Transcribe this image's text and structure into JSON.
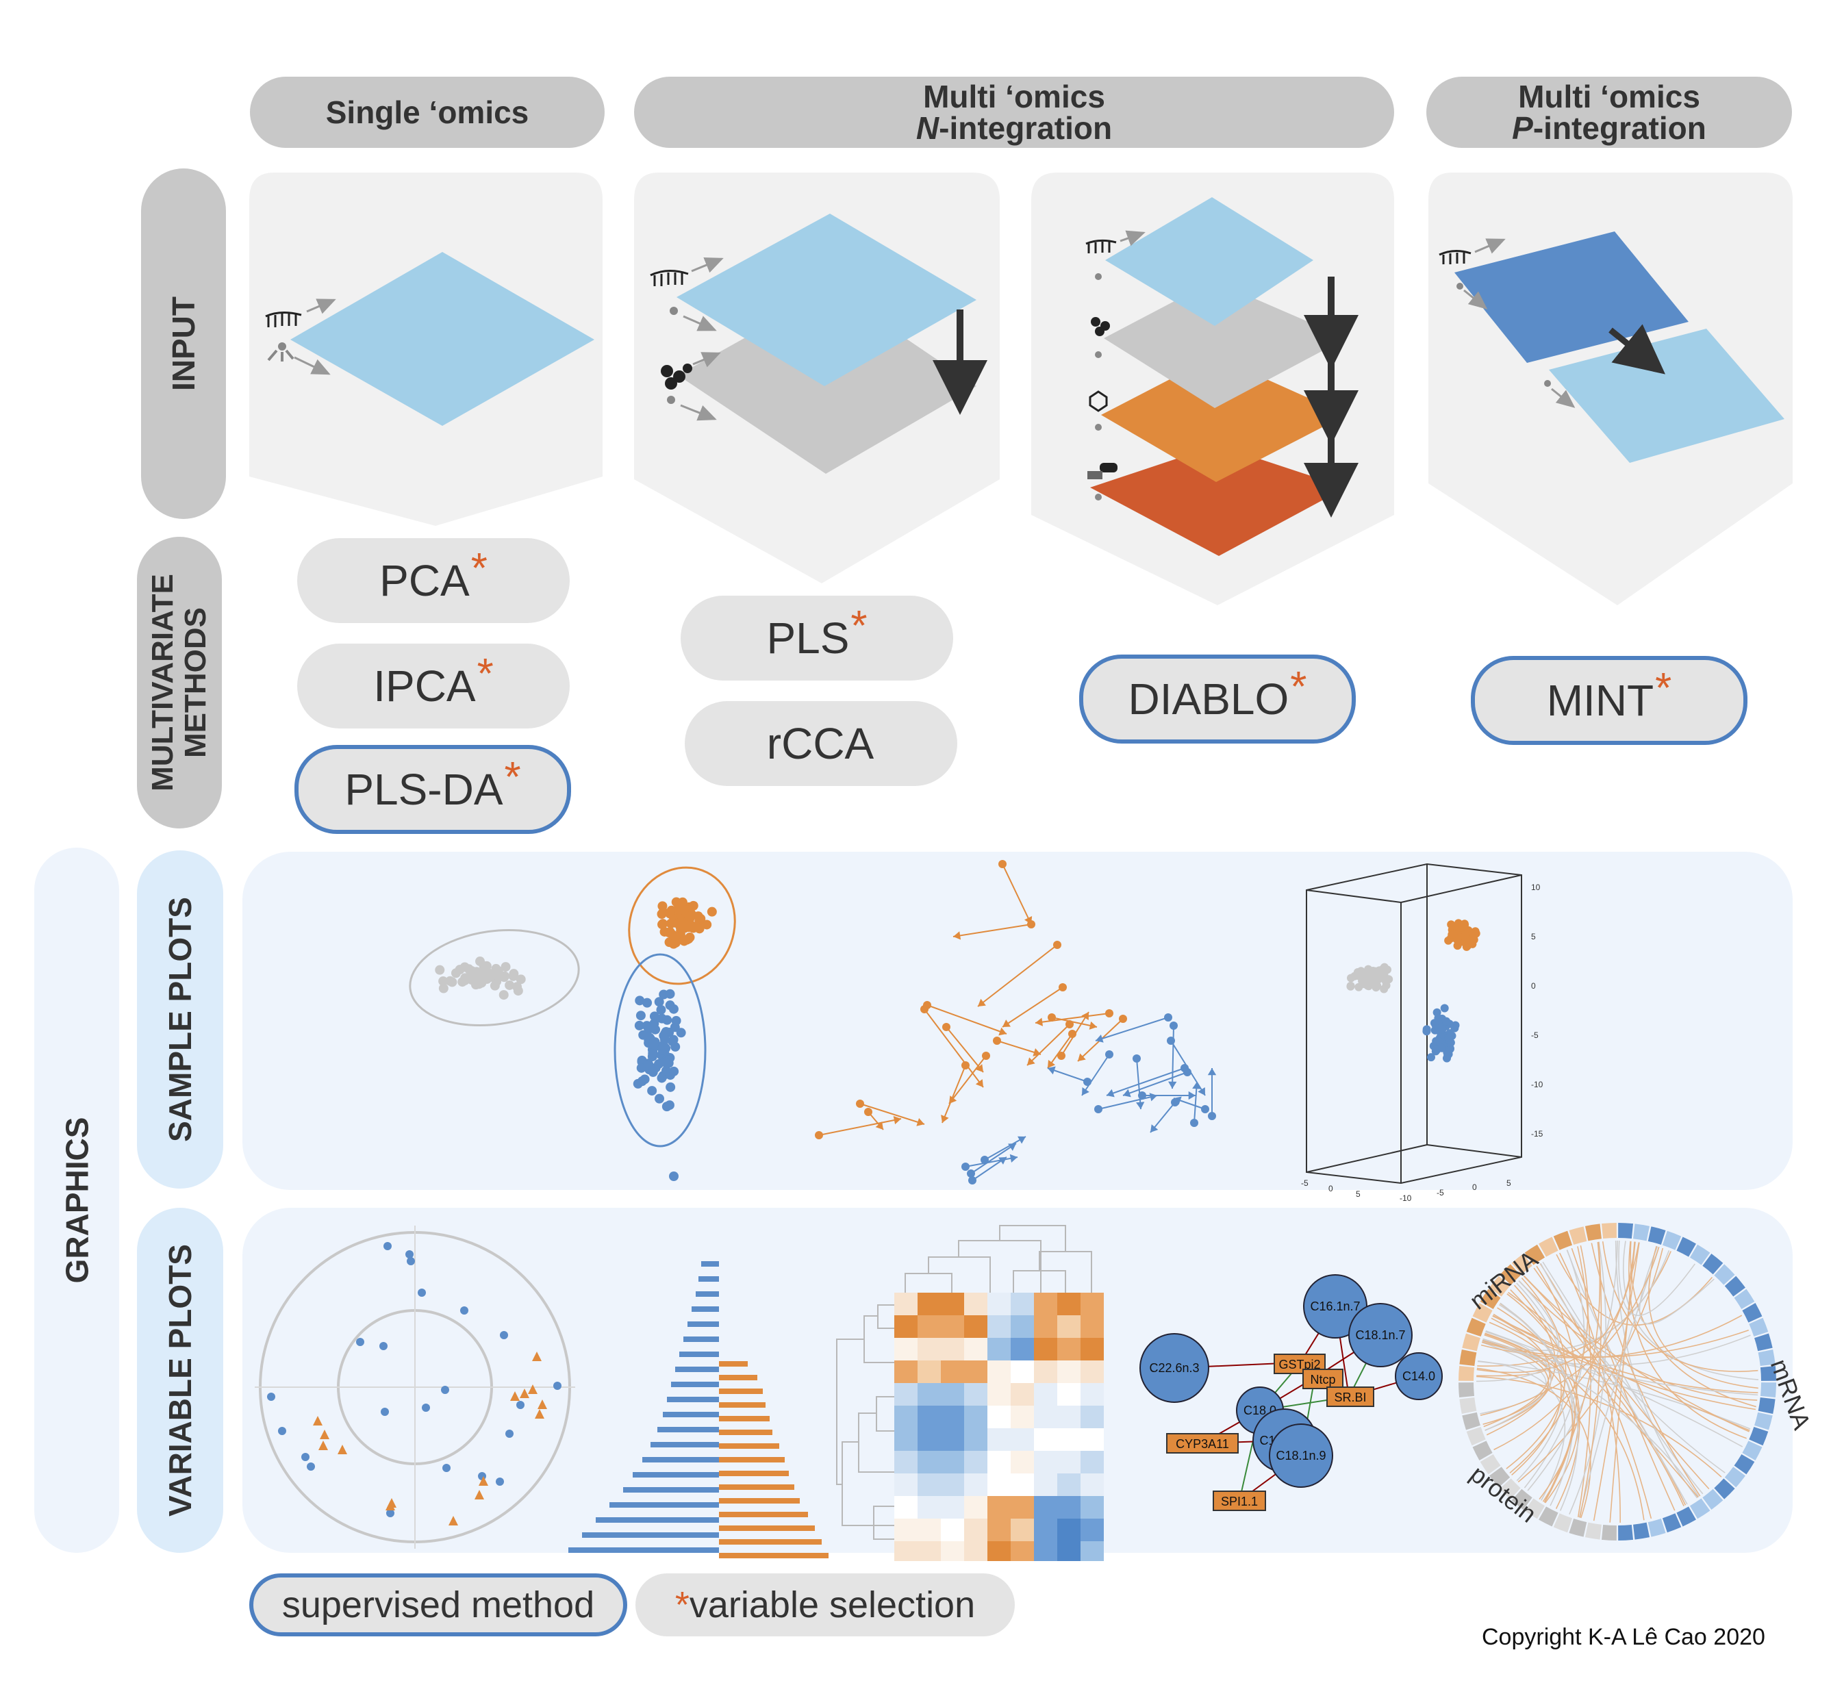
{
  "columns": {
    "single": {
      "line1": "Single ‘omics"
    },
    "multi_n": {
      "line1": "Multi ‘omics",
      "line2_italic": "N",
      "line2_rest": "-integration"
    },
    "multi_p": {
      "line1": "Multi ‘omics",
      "line2_italic": "P",
      "line2_rest": "-integration"
    }
  },
  "rows": {
    "input": "INPUT",
    "methods_line1": "MULTIVARIATE",
    "methods_line2": "METHODS",
    "graphics": "GRAPHICS",
    "sample_plots": "SAMPLE PLOTS",
    "variable_plots": "VARIABLE PLOTS"
  },
  "methods": {
    "pca": {
      "label": "PCA",
      "star": "*",
      "supervised": false
    },
    "ipca": {
      "label": "IPCA",
      "star": "*",
      "supervised": false
    },
    "plsda": {
      "label": "PLS-DA",
      "star": "*",
      "supervised": true
    },
    "pls": {
      "label": "PLS",
      "star": "*",
      "supervised": false
    },
    "rcca": {
      "label": "rCCA",
      "star": "",
      "supervised": false
    },
    "diablo": {
      "label": "DIABLO",
      "star": "*",
      "supervised": true
    },
    "mint": {
      "label": "MINT",
      "star": "*",
      "supervised": true
    }
  },
  "legend": {
    "supervised": "supervised method",
    "star": "*",
    "variable_selection": "variable selection"
  },
  "copyright": "Copyright  K-A Lê Cao 2020",
  "plot3d": {
    "right_ticks": [
      "10",
      "5",
      "0",
      "-5",
      "-10",
      "-15"
    ],
    "bottom_left_ticks": [
      "-5",
      "0",
      "5"
    ],
    "bottom_right_ticks": [
      "-10",
      "-5",
      "0",
      "5"
    ]
  },
  "network": {
    "circles": [
      "C22.6n.3",
      "C16.1n.7",
      "C18.1n.7",
      "C14.0",
      "C18.0",
      "C16.1n.9",
      "C18.1n.9"
    ],
    "boxes": [
      "GSTpi2",
      "Ntcp",
      "SR.BI",
      "CYP3A11",
      "SPI1.1"
    ]
  },
  "circos": {
    "miRNA": "miRNA",
    "mRNA": "mRNA",
    "protein": "protein"
  },
  "colors": {
    "blue": "#5b8cc8",
    "light_blue": "#a2cfe8",
    "orange": "#e08a3c",
    "dark_orange": "#cf5a2e",
    "grey": "#c8c8c8",
    "panel_bg": "#eef4fc",
    "supervised_border": "#4d7fc0"
  }
}
